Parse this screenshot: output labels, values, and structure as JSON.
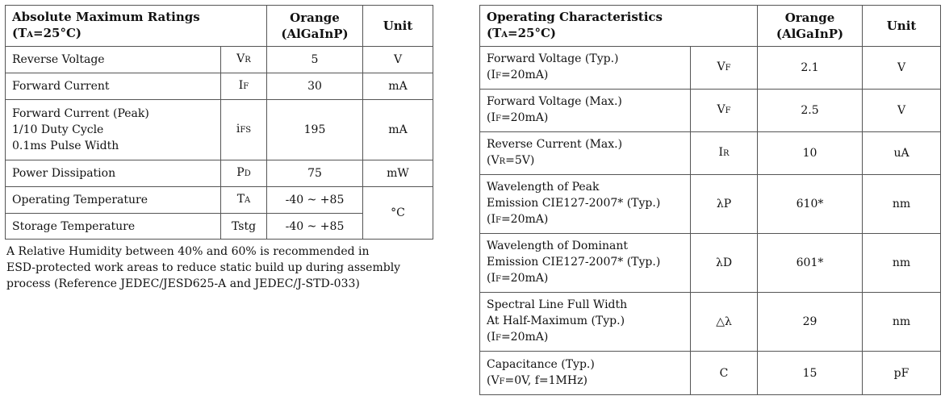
{
  "absolute_maximum_ratings": {
    "header": {
      "title": "Absolute Maximum Ratings",
      "condition_prefix": "(T",
      "condition_sub": "A",
      "condition_suffix": "=25°C)",
      "col_orange_line1": "Orange",
      "col_orange_line2": "(AlGaInP)",
      "col_unit": "Unit"
    },
    "rows": [
      {
        "param": [
          "Reverse Voltage"
        ],
        "sym_main": "V",
        "sym_sub": "R",
        "value": "5",
        "unit": "V"
      },
      {
        "param": [
          "Forward Current"
        ],
        "sym_main": "I",
        "sym_sub": "F",
        "value": "30",
        "unit": "mA"
      },
      {
        "param": [
          "Forward Current (Peak)",
          "1/10 Duty Cycle",
          "0.1ms Pulse Width"
        ],
        "sym_main": "i",
        "sym_sub": "FS",
        "value": "195",
        "unit": "mA"
      },
      {
        "param": [
          "Power Dissipation"
        ],
        "sym_main": "P",
        "sym_sub": "D",
        "value": "75",
        "unit": "mW"
      },
      {
        "param": [
          "Operating Temperature"
        ],
        "sym_main": "T",
        "sym_sub": "A",
        "value": "-40 ~ +85",
        "unit": "°C"
      },
      {
        "param": [
          "Storage Temperature"
        ],
        "sym_main": "Tstg",
        "sym_sub": "",
        "value": "-40 ~ +85"
      }
    ],
    "note_lines": [
      "A Relative Humidity between 40% and 60% is recommended in",
      "ESD-protected work areas to reduce static build up during assembly",
      "process (Reference JEDEC/JESD625-A and JEDEC/J-STD-033)"
    ]
  },
  "operating_characteristics": {
    "header": {
      "title": "Operating Characteristics",
      "condition_prefix": "(T",
      "condition_sub": "A",
      "condition_suffix": "=25°C)",
      "col_orange_line1": "Orange",
      "col_orange_line2": "(AlGaInP)",
      "col_unit": "Unit"
    },
    "rows": [
      {
        "param": [
          "Forward Voltage (Typ.)"
        ],
        "cond_prefix": "(I",
        "cond_sub": "F",
        "cond_suffix": "=20mA)",
        "sym_main": "V",
        "sym_sub": "F",
        "value": "2.1",
        "unit": "V"
      },
      {
        "param": [
          "Forward Voltage (Max.)"
        ],
        "cond_prefix": "(I",
        "cond_sub": "F",
        "cond_suffix": "=20mA)",
        "sym_main": "V",
        "sym_sub": "F",
        "value": "2.5",
        "unit": "V"
      },
      {
        "param": [
          "Reverse Current (Max.)"
        ],
        "cond_prefix": "(V",
        "cond_sub": "R",
        "cond_suffix": "=5V)",
        "sym_main": "I",
        "sym_sub": "R",
        "value": "10",
        "unit": "uA"
      },
      {
        "param": [
          "Wavelength of Peak",
          "Emission CIE127-2007* (Typ.)"
        ],
        "cond_prefix": "(I",
        "cond_sub": "F",
        "cond_suffix": "=20mA)",
        "sym_main": "λP",
        "sym_sub": "",
        "value": "610*",
        "unit": "nm"
      },
      {
        "param": [
          "Wavelength of Dominant",
          "Emission CIE127-2007* (Typ.)"
        ],
        "cond_prefix": "(I",
        "cond_sub": "F",
        "cond_suffix": "=20mA)",
        "sym_main": "λD",
        "sym_sub": "",
        "value": "601*",
        "unit": "nm"
      },
      {
        "param": [
          "Spectral Line Full Width",
          "At Half-Maximum (Typ.)"
        ],
        "cond_prefix": "(I",
        "cond_sub": "F",
        "cond_suffix": "=20mA)",
        "sym_main": "△λ",
        "sym_sub": "",
        "value": "29",
        "unit": "nm"
      },
      {
        "param": [
          "Capacitance (Typ.)"
        ],
        "cond_prefix": "(V",
        "cond_sub": "F",
        "cond_suffix": "=0V, f=1MHz)",
        "sym_main": "C",
        "sym_sub": "",
        "value": "15",
        "unit": "pF"
      }
    ]
  }
}
